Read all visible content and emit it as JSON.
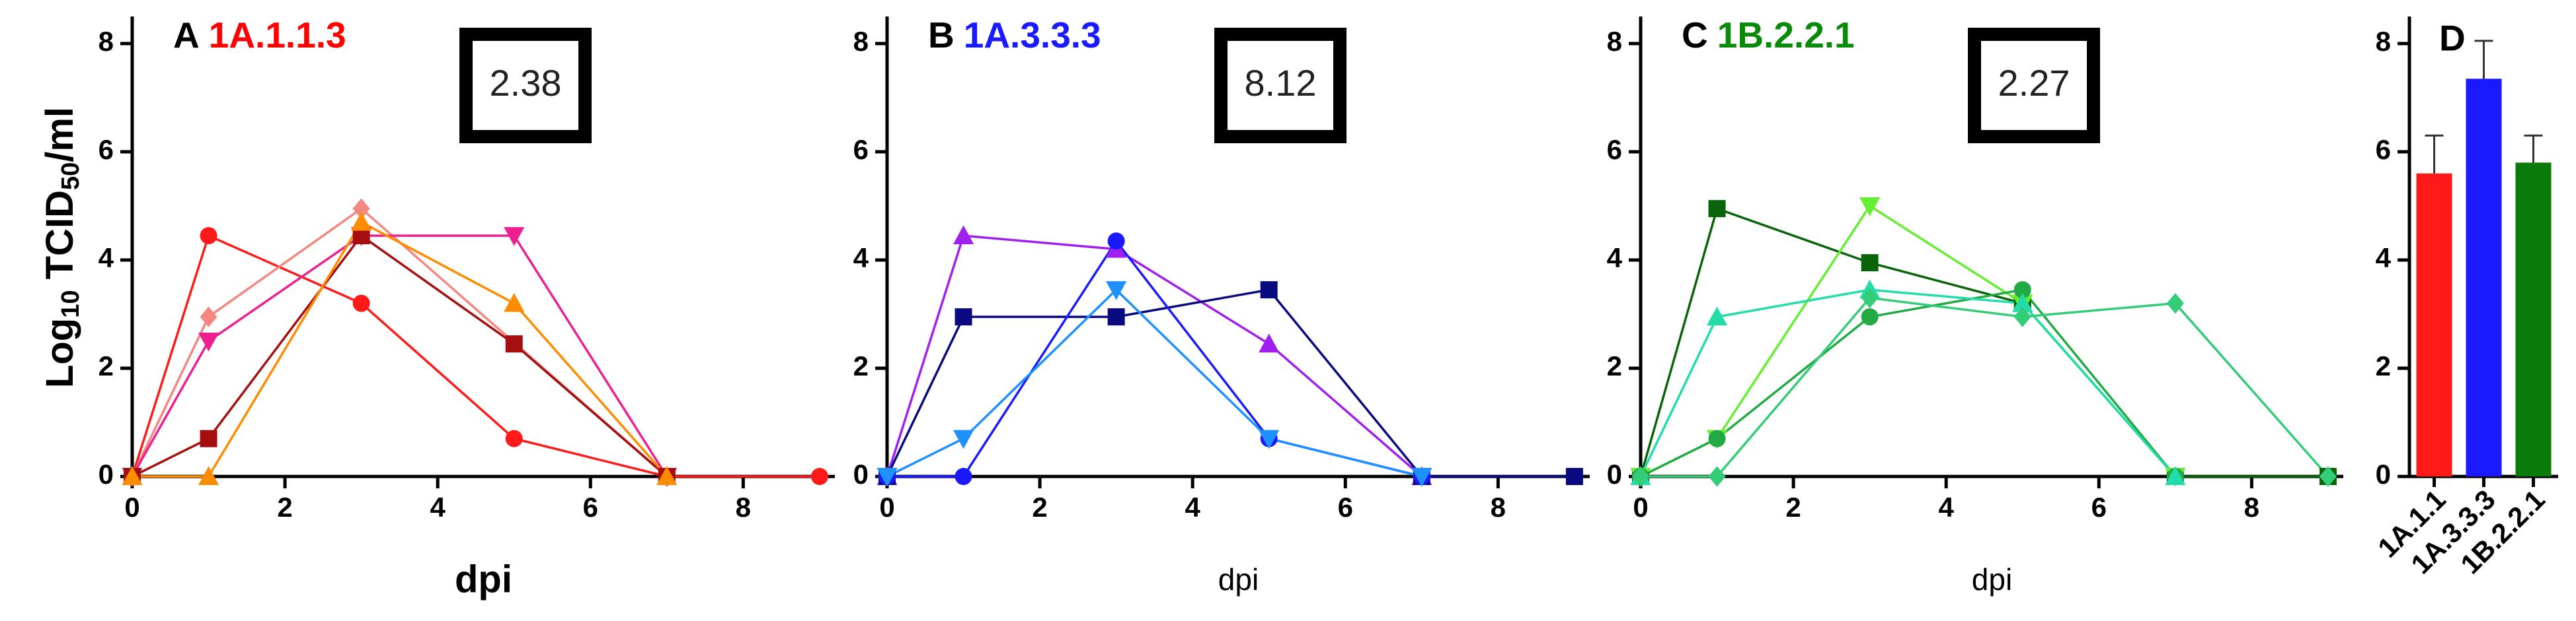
{
  "chart_data": [
    {
      "type": "line",
      "title": "A",
      "subtitle": "1A.1.1.3",
      "subtitle_color": "#ff0000",
      "annotation": "2.38",
      "xlabel": "dpi",
      "ylabel": [
        "Log",
        "10",
        " TCID",
        "50",
        "/ml"
      ],
      "xlim": [
        0,
        9.2
      ],
      "ylim": [
        0,
        8.5
      ],
      "xticks": [
        0,
        2,
        4,
        6,
        8
      ],
      "yticks": [
        0,
        2,
        4,
        6,
        8
      ],
      "series": [
        {
          "marker": "circle",
          "color": "#ff1a1a",
          "x": [
            0,
            1,
            3,
            5,
            7,
            9
          ],
          "values": [
            0,
            4.45,
            3.2,
            0.7,
            0,
            0
          ]
        },
        {
          "marker": "diamond",
          "color": "#f4877f",
          "x": [
            0,
            1,
            3,
            7
          ],
          "values": [
            0,
            2.95,
            4.95,
            0
          ]
        },
        {
          "marker": "triangle-down",
          "color": "#ee1f8f",
          "x": [
            0,
            1,
            3,
            5,
            7
          ],
          "values": [
            0,
            2.5,
            4.45,
            4.45,
            0
          ]
        },
        {
          "marker": "square",
          "color": "#a50f0f",
          "x": [
            0,
            1,
            3,
            5,
            7
          ],
          "values": [
            0,
            0.7,
            4.45,
            2.45,
            0
          ]
        },
        {
          "marker": "triangle-up",
          "color": "#ff8c00",
          "x": [
            0,
            1,
            3,
            5,
            7
          ],
          "values": [
            0,
            0,
            4.7,
            3.2,
            0
          ]
        }
      ]
    },
    {
      "type": "line",
      "title": "B",
      "subtitle": "1A.3.3.3",
      "subtitle_color": "#1a1aff",
      "annotation": "8.12",
      "xlabel": "dpi",
      "xlim": [
        0,
        9.2
      ],
      "ylim": [
        0,
        8.5
      ],
      "xticks": [
        0,
        2,
        4,
        6,
        8
      ],
      "yticks": [
        0,
        2,
        4,
        6,
        8
      ],
      "series": [
        {
          "marker": "triangle-up",
          "color": "#a020f0",
          "x": [
            0,
            1,
            3,
            5,
            7
          ],
          "values": [
            0,
            4.45,
            4.2,
            2.45,
            0
          ]
        },
        {
          "marker": "square",
          "color": "#0a0a80",
          "x": [
            0,
            1,
            3,
            5,
            7,
            9
          ],
          "values": [
            0,
            2.95,
            2.95,
            3.45,
            0,
            0
          ]
        },
        {
          "marker": "circle",
          "color": "#1a1aff",
          "x": [
            0,
            1,
            3,
            5,
            7
          ],
          "values": [
            0,
            0,
            4.35,
            0.7,
            0
          ]
        },
        {
          "marker": "triangle-down",
          "color": "#1e90ff",
          "x": [
            0,
            1,
            3,
            5,
            7
          ],
          "values": [
            0,
            0.7,
            3.45,
            0.7,
            0
          ]
        }
      ]
    },
    {
      "type": "line",
      "title": "C",
      "subtitle": "1B.2.2.1",
      "subtitle_color": "#0a8a0a",
      "annotation": "2.27",
      "xlabel": "dpi",
      "xlim": [
        0,
        9.2
      ],
      "ylim": [
        0,
        8.5
      ],
      "xticks": [
        0,
        2,
        4,
        6,
        8
      ],
      "yticks": [
        0,
        2,
        4,
        6,
        8
      ],
      "series": [
        {
          "marker": "square",
          "color": "#0a640a",
          "x": [
            0,
            1,
            3,
            5,
            7,
            9
          ],
          "values": [
            0,
            4.95,
            3.95,
            3.2,
            0,
            0
          ]
        },
        {
          "marker": "triangle-down",
          "color": "#66ee33",
          "x": [
            0,
            1,
            3,
            5,
            7
          ],
          "values": [
            0,
            0.7,
            5,
            3.2,
            0
          ]
        },
        {
          "marker": "circle",
          "color": "#22aa44",
          "x": [
            0,
            1,
            3,
            5,
            7
          ],
          "values": [
            0,
            0.7,
            2.95,
            3.45,
            0
          ]
        },
        {
          "marker": "triangle-up",
          "color": "#22ddaa",
          "x": [
            0,
            1,
            3,
            5,
            7
          ],
          "values": [
            0,
            2.95,
            3.45,
            3.2,
            0
          ]
        },
        {
          "marker": "diamond",
          "color": "#33cc77",
          "x": [
            0,
            1,
            3,
            5,
            7,
            9
          ],
          "values": [
            0,
            0,
            3.3,
            2.95,
            3.2,
            0
          ]
        }
      ]
    },
    {
      "type": "bar",
      "title": "D",
      "categories": [
        "1A.1.1",
        "1A.3.3.3",
        "1B.2.2.1"
      ],
      "values": [
        5.6,
        7.35,
        5.8
      ],
      "errors": [
        0.7,
        0.7,
        0.5
      ],
      "colors": [
        "#ff1a1a",
        "#1a1aff",
        "#0a7a0a"
      ],
      "ylim": [
        0,
        8.5
      ],
      "yticks": [
        0,
        2,
        4,
        6,
        8
      ]
    }
  ]
}
